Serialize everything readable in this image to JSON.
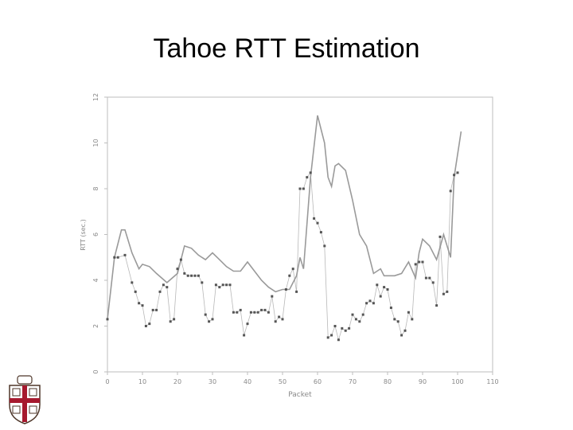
{
  "slide": {
    "title": "Tahoe RTT Estimation"
  },
  "colors": {
    "series": "#9a9a9a",
    "axis": "#bdbdbd",
    "logo_red": "#a6192e",
    "logo_brown": "#4e3629"
  },
  "chart_data": {
    "type": "line",
    "title": "",
    "xlabel": "Packet",
    "ylabel": "RTT (sec.)",
    "xlim": [
      0,
      110
    ],
    "ylim": [
      0,
      12
    ],
    "xticks": [
      "0",
      "10",
      "20",
      "30",
      "40",
      "50",
      "60",
      "70",
      "80",
      "90",
      "100",
      "110"
    ],
    "yticks": [
      "0",
      "2",
      "4",
      "6",
      "8",
      "10",
      "12"
    ],
    "grid": false,
    "legend": "none",
    "series": [
      {
        "style": "line",
        "points": [
          [
            0,
            2.3
          ],
          [
            2,
            5.0
          ],
          [
            4,
            6.2
          ],
          [
            5,
            6.2
          ],
          [
            7,
            5.2
          ],
          [
            9,
            4.5
          ],
          [
            10,
            4.7
          ],
          [
            12,
            4.6
          ],
          [
            14,
            4.3
          ],
          [
            17,
            3.9
          ],
          [
            20,
            4.3
          ],
          [
            22,
            5.5
          ],
          [
            24,
            5.4
          ],
          [
            26,
            5.1
          ],
          [
            28,
            4.9
          ],
          [
            30,
            5.2
          ],
          [
            32,
            4.9
          ],
          [
            34,
            4.6
          ],
          [
            36,
            4.4
          ],
          [
            38,
            4.4
          ],
          [
            40,
            4.8
          ],
          [
            42,
            4.4
          ],
          [
            44,
            4.0
          ],
          [
            46,
            3.7
          ],
          [
            48,
            3.5
          ],
          [
            50,
            3.6
          ],
          [
            52,
            3.6
          ],
          [
            54,
            4.2
          ],
          [
            55,
            5.0
          ],
          [
            56,
            4.5
          ],
          [
            58,
            8.5
          ],
          [
            60,
            11.2
          ],
          [
            62,
            10.0
          ],
          [
            63,
            8.5
          ],
          [
            64,
            8.1
          ],
          [
            65,
            9.0
          ],
          [
            66,
            9.1
          ],
          [
            68,
            8.8
          ],
          [
            70,
            7.5
          ],
          [
            72,
            6.0
          ],
          [
            74,
            5.5
          ],
          [
            76,
            4.3
          ],
          [
            78,
            4.5
          ],
          [
            79,
            4.2
          ],
          [
            82,
            4.2
          ],
          [
            84,
            4.3
          ],
          [
            86,
            4.8
          ],
          [
            88,
            4.1
          ],
          [
            89,
            5.2
          ],
          [
            90,
            5.8
          ],
          [
            92,
            5.5
          ],
          [
            94,
            4.9
          ],
          [
            96,
            6.0
          ],
          [
            98,
            5.0
          ],
          [
            99,
            8.5
          ],
          [
            101,
            10.5
          ]
        ]
      },
      {
        "style": "markers",
        "points": [
          [
            0,
            2.3
          ],
          [
            2,
            5.0
          ],
          [
            3,
            5.0
          ],
          [
            5,
            5.1
          ],
          [
            7,
            3.9
          ],
          [
            8,
            3.5
          ],
          [
            9,
            3.0
          ],
          [
            10,
            2.9
          ],
          [
            11,
            2.0
          ],
          [
            12,
            2.1
          ],
          [
            13,
            2.7
          ],
          [
            14,
            2.7
          ],
          [
            15,
            3.5
          ],
          [
            16,
            3.8
          ],
          [
            17,
            3.7
          ],
          [
            18,
            2.2
          ],
          [
            19,
            2.3
          ],
          [
            20,
            4.5
          ],
          [
            21,
            4.9
          ],
          [
            22,
            4.3
          ],
          [
            23,
            4.2
          ],
          [
            24,
            4.2
          ],
          [
            25,
            4.2
          ],
          [
            26,
            4.2
          ],
          [
            27,
            3.9
          ],
          [
            28,
            2.5
          ],
          [
            29,
            2.2
          ],
          [
            30,
            2.3
          ],
          [
            31,
            3.8
          ],
          [
            32,
            3.7
          ],
          [
            33,
            3.8
          ],
          [
            34,
            3.8
          ],
          [
            35,
            3.8
          ],
          [
            36,
            2.6
          ],
          [
            37,
            2.6
          ],
          [
            38,
            2.7
          ],
          [
            39,
            1.6
          ],
          [
            40,
            2.1
          ],
          [
            41,
            2.6
          ],
          [
            42,
            2.6
          ],
          [
            43,
            2.6
          ],
          [
            44,
            2.7
          ],
          [
            45,
            2.7
          ],
          [
            46,
            2.6
          ],
          [
            47,
            3.3
          ],
          [
            48,
            2.2
          ],
          [
            49,
            2.4
          ],
          [
            50,
            2.3
          ],
          [
            51,
            3.6
          ],
          [
            52,
            4.2
          ],
          [
            53,
            4.5
          ],
          [
            54,
            3.5
          ],
          [
            55,
            8.0
          ],
          [
            56,
            8.0
          ],
          [
            57,
            8.5
          ],
          [
            58,
            8.7
          ],
          [
            59,
            6.7
          ],
          [
            60,
            6.5
          ],
          [
            61,
            6.1
          ],
          [
            62,
            5.5
          ],
          [
            63,
            1.5
          ],
          [
            64,
            1.6
          ],
          [
            65,
            2.0
          ],
          [
            66,
            1.4
          ],
          [
            67,
            1.9
          ],
          [
            68,
            1.8
          ],
          [
            69,
            1.9
          ],
          [
            70,
            2.5
          ],
          [
            71,
            2.3
          ],
          [
            72,
            2.2
          ],
          [
            73,
            2.5
          ],
          [
            74,
            3.0
          ],
          [
            75,
            3.1
          ],
          [
            76,
            3.0
          ],
          [
            77,
            3.8
          ],
          [
            78,
            3.3
          ],
          [
            79,
            3.7
          ],
          [
            80,
            3.6
          ],
          [
            81,
            2.8
          ],
          [
            82,
            2.3
          ],
          [
            83,
            2.2
          ],
          [
            84,
            1.6
          ],
          [
            85,
            1.8
          ],
          [
            86,
            2.6
          ],
          [
            87,
            2.3
          ],
          [
            88,
            4.7
          ],
          [
            89,
            4.8
          ],
          [
            90,
            4.8
          ],
          [
            91,
            4.1
          ],
          [
            92,
            4.1
          ],
          [
            93,
            3.9
          ],
          [
            94,
            2.9
          ],
          [
            95,
            5.9
          ],
          [
            96,
            3.4
          ],
          [
            97,
            3.5
          ],
          [
            98,
            7.9
          ],
          [
            99,
            8.6
          ],
          [
            100,
            8.7
          ]
        ]
      }
    ]
  }
}
